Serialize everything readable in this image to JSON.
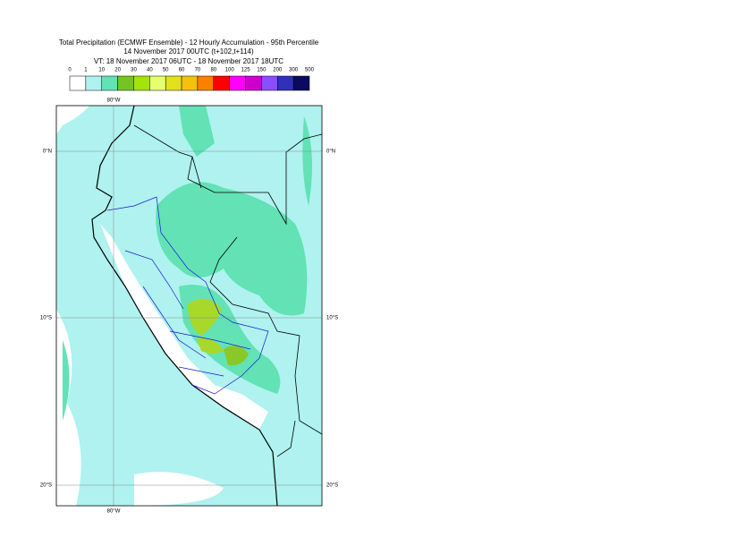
{
  "header": {
    "title": "Total Precipitation (ECMWF Ensemble) - 12 Hourly Accumulation - 95th Percentile",
    "base_time": "14 November 2017 00UTC (t+102,t+114)",
    "valid_time": "VT: 18 November 2017 06UTC - 18 November 2017 18UTC"
  },
  "legend": {
    "levels": [
      "0",
      "1",
      "10",
      "20",
      "30",
      "40",
      "50",
      "60",
      "70",
      "80",
      "100",
      "125",
      "150",
      "200",
      "300",
      "500"
    ],
    "colors": [
      "#ffffff",
      "#aff2ef",
      "#62e2b5",
      "#76c424",
      "#a3e40d",
      "#e6ff6e",
      "#e1e11c",
      "#f5c00e",
      "#ff8000",
      "#ff0000",
      "#ff00ff",
      "#cc00cc",
      "#8a4dff",
      "#3030b8",
      "#0a0a60"
    ]
  },
  "map": {
    "lon_labels": [
      "80°W"
    ],
    "lat_labels": [
      "0°N",
      "10°S",
      "20°S"
    ]
  }
}
